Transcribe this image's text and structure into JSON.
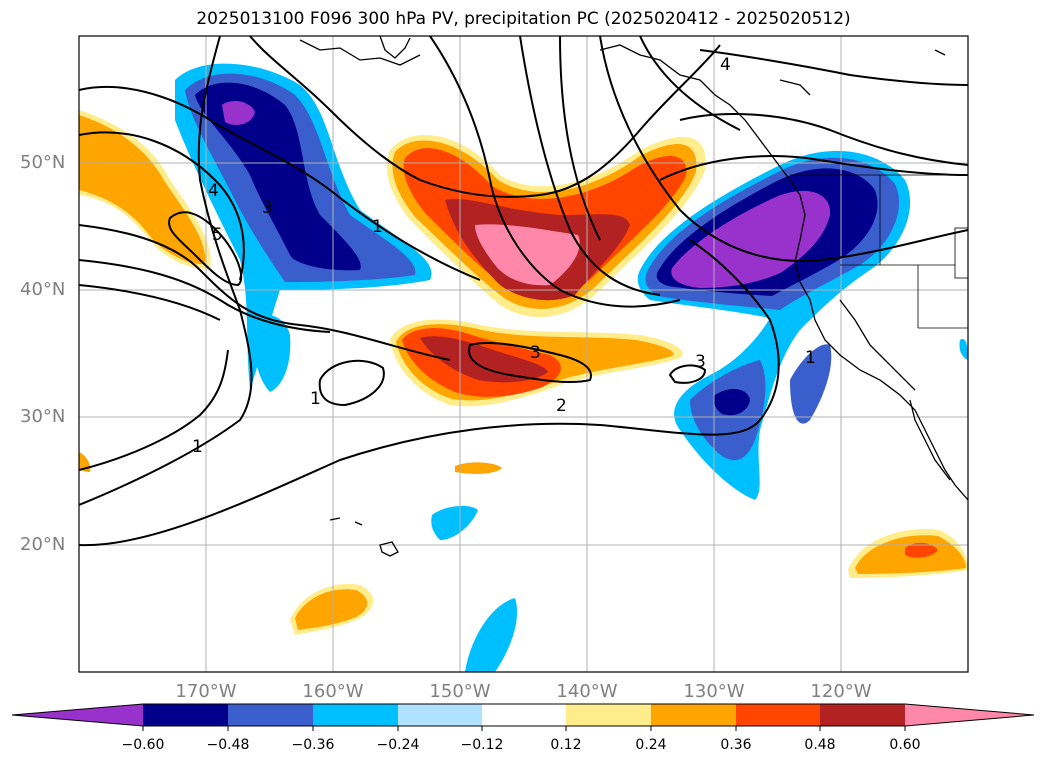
{
  "title": "2025013100 F096 300 hPa PV, precipitation PC (2025020412 - 2025020512)",
  "map": {
    "lon_range": [
      -180,
      -110
    ],
    "lat_range": [
      10,
      60
    ],
    "lat_ticks": [
      "50°N",
      "40°N",
      "30°N",
      "20°N"
    ],
    "lon_ticks": [
      "170°W",
      "160°W",
      "150°W",
      "140°W",
      "130°W",
      "120°W"
    ],
    "grid": true,
    "pv_contour_labels": [
      "1",
      "1",
      "1",
      "2",
      "3",
      "3",
      "3",
      "4",
      "4",
      "5",
      "1"
    ]
  },
  "colorbar": {
    "levels": [
      "−0.60",
      "−0.48",
      "−0.36",
      "−0.24",
      "−0.12",
      "0.12",
      "0.24",
      "0.36",
      "0.48",
      "0.60"
    ],
    "colors": [
      "#9932cc",
      "#00008b",
      "#3a5fcd",
      "#00bfff",
      "#b0e2ff",
      "#ffffff",
      "#ffec8b",
      "#ffa500",
      "#ff4500",
      "#b22222",
      "#ff88aa"
    ],
    "extend": "both"
  }
}
